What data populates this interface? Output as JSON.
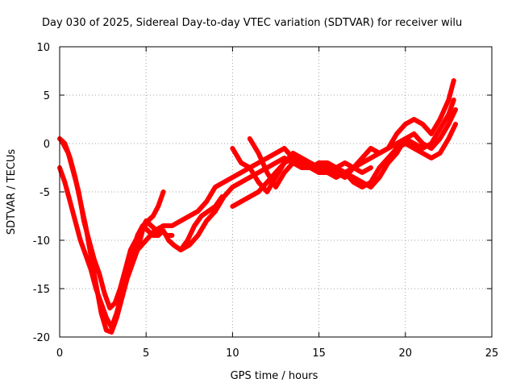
{
  "chart_data": {
    "type": "scatter",
    "title": "Day 030 of 2025, Sidereal Day-to-day VTEC variation (SDTVAR) for receiver wilu",
    "xlabel": "GPS time / hours",
    "ylabel": "SDTVAR / TECUs",
    "xlim": [
      0,
      25
    ],
    "ylim": [
      -20,
      10
    ],
    "xticks": [
      0,
      5,
      10,
      15,
      20,
      25
    ],
    "yticks": [
      -20,
      -15,
      -10,
      -5,
      0,
      5,
      10
    ],
    "grid": true,
    "legend": "none",
    "series_color": "#ff0000",
    "marker": "plus",
    "series": [
      {
        "x": [
          0.0,
          0.3,
          0.6,
          0.9,
          1.2,
          1.5,
          1.8,
          2.1,
          2.4,
          2.7,
          3.0,
          3.3,
          3.6,
          3.9,
          4.2,
          4.5,
          4.8,
          5.1,
          5.4,
          5.7,
          6.0
        ],
        "y": [
          0.5,
          0.0,
          -1.5,
          -3.5,
          -6.0,
          -8.5,
          -11.5,
          -14.5,
          -17.5,
          -19.3,
          -19.5,
          -18.0,
          -16.0,
          -14.0,
          -12.5,
          -11.0,
          -9.0,
          -8.0,
          -7.5,
          -6.5,
          -5.0
        ]
      },
      {
        "x": [
          0.0,
          0.3,
          0.6,
          0.9,
          1.2,
          1.5,
          1.8,
          2.1,
          2.4,
          2.7,
          3.0,
          3.3,
          3.6,
          3.9,
          4.2,
          4.5,
          4.8,
          5.1,
          5.4,
          5.7,
          6.0,
          6.3,
          6.6,
          7.0,
          7.4,
          7.8,
          8.2,
          8.6,
          9.0,
          9.4
        ],
        "y": [
          -2.5,
          -4.0,
          -6.0,
          -8.0,
          -10.0,
          -11.5,
          -13.0,
          -15.0,
          -16.5,
          -18.0,
          -19.0,
          -17.5,
          -15.5,
          -13.5,
          -11.5,
          -9.5,
          -8.5,
          -9.0,
          -9.5,
          -9.5,
          -9.0,
          -10.0,
          -10.5,
          -11.0,
          -10.0,
          -8.5,
          -7.5,
          -7.0,
          -6.5,
          -5.5
        ]
      },
      {
        "x": [
          0.2,
          0.5,
          0.8,
          1.1,
          1.4,
          1.7,
          2.0,
          2.3,
          2.6,
          2.9,
          3.2,
          3.5,
          3.8,
          4.1,
          4.4,
          4.7,
          5.0,
          5.3,
          5.6,
          5.9,
          6.2,
          6.5
        ],
        "y": [
          0.0,
          -1.0,
          -3.0,
          -5.0,
          -8.0,
          -10.0,
          -12.0,
          -13.5,
          -15.5,
          -17.0,
          -16.5,
          -15.0,
          -13.0,
          -11.0,
          -10.0,
          -9.0,
          -8.0,
          -8.5,
          -9.0,
          -9.0,
          -9.5,
          -9.5
        ]
      },
      {
        "x": [
          4.5,
          5.0,
          5.5,
          6.0,
          6.5,
          7.0,
          7.5,
          8.0,
          8.5,
          9.0,
          9.5,
          10.0,
          10.5,
          11.0,
          11.5,
          12.0,
          12.5,
          13.0,
          13.5,
          14.0,
          14.5,
          15.0,
          15.5,
          16.0,
          16.5,
          17.0,
          17.5,
          18.0
        ],
        "y": [
          -11.0,
          -10.0,
          -9.0,
          -8.5,
          -8.5,
          -8.0,
          -7.5,
          -7.0,
          -6.0,
          -4.5,
          -4.0,
          -3.5,
          -3.0,
          -2.5,
          -2.0,
          -1.5,
          -1.0,
          -0.5,
          -1.5,
          -2.0,
          -2.0,
          -2.5,
          -2.5,
          -3.0,
          -3.5,
          -2.5,
          -3.0,
          -2.5
        ]
      },
      {
        "x": [
          7.0,
          7.5,
          8.0,
          8.5,
          9.0,
          9.5,
          10.0,
          10.5,
          11.0,
          11.5,
          12.0,
          12.5,
          13.0,
          13.5,
          14.0,
          14.5,
          15.0,
          15.5,
          16.0,
          16.5,
          17.0,
          17.5,
          18.0,
          18.5,
          19.0,
          19.5,
          20.0,
          20.5,
          21.0,
          21.5,
          22.0,
          22.5,
          22.8
        ],
        "y": [
          -11.0,
          -10.5,
          -9.5,
          -8.0,
          -7.0,
          -5.5,
          -4.5,
          -4.0,
          -3.5,
          -3.0,
          -2.5,
          -2.0,
          -1.5,
          -2.0,
          -2.5,
          -2.5,
          -3.0,
          -3.0,
          -2.5,
          -2.0,
          -2.5,
          -2.0,
          -1.5,
          -1.0,
          -0.5,
          0.0,
          0.5,
          0.0,
          -0.5,
          0.0,
          1.5,
          3.0,
          4.5
        ]
      },
      {
        "x": [
          10.0,
          10.5,
          11.0,
          11.5,
          12.0,
          12.5,
          13.0,
          13.5,
          14.0,
          14.5,
          15.0,
          15.5,
          16.0,
          16.5,
          17.0,
          17.5,
          18.0,
          18.5,
          19.0,
          19.5,
          20.0,
          20.5,
          21.0,
          21.5,
          22.0,
          22.5,
          22.9
        ],
        "y": [
          -6.5,
          -6.0,
          -5.5,
          -5.0,
          -4.0,
          -3.0,
          -2.0,
          -1.5,
          -2.0,
          -2.5,
          -2.0,
          -2.0,
          -2.5,
          -3.0,
          -3.5,
          -4.0,
          -4.5,
          -3.5,
          -2.0,
          -1.0,
          0.5,
          1.0,
          0.0,
          -0.5,
          0.5,
          2.0,
          3.5
        ]
      },
      {
        "x": [
          10.0,
          10.5,
          11.0,
          11.5,
          12.0,
          12.5,
          13.0,
          13.5,
          14.0,
          14.5,
          15.0,
          15.5,
          16.0,
          16.5,
          17.0,
          17.5,
          18.0,
          18.5,
          19.0,
          19.5,
          20.0,
          20.5,
          21.0,
          21.5,
          22.0,
          22.5,
          22.8
        ],
        "y": [
          -0.5,
          -2.0,
          -2.5,
          -4.0,
          -5.0,
          -3.5,
          -2.0,
          -1.0,
          -1.5,
          -2.0,
          -2.5,
          -3.0,
          -3.5,
          -3.0,
          -2.5,
          -1.5,
          -0.5,
          -1.0,
          -0.5,
          1.0,
          2.0,
          2.5,
          2.0,
          1.0,
          2.5,
          4.5,
          6.5
        ]
      },
      {
        "x": [
          11.0,
          11.5,
          12.0,
          12.5,
          13.0,
          13.5,
          14.0,
          14.5,
          15.0,
          15.5,
          16.0,
          16.5,
          17.0,
          17.5,
          18.0,
          18.5,
          19.0,
          19.5,
          20.0,
          20.5,
          21.0,
          21.5,
          22.0,
          22.5,
          22.9
        ],
        "y": [
          0.5,
          -1.0,
          -3.0,
          -4.5,
          -3.0,
          -2.0,
          -2.0,
          -2.5,
          -3.0,
          -3.0,
          -2.5,
          -3.0,
          -4.0,
          -4.5,
          -4.0,
          -2.5,
          -1.5,
          -0.5,
          0.0,
          -0.5,
          -1.0,
          -1.5,
          -1.0,
          0.5,
          2.0
        ]
      }
    ]
  }
}
